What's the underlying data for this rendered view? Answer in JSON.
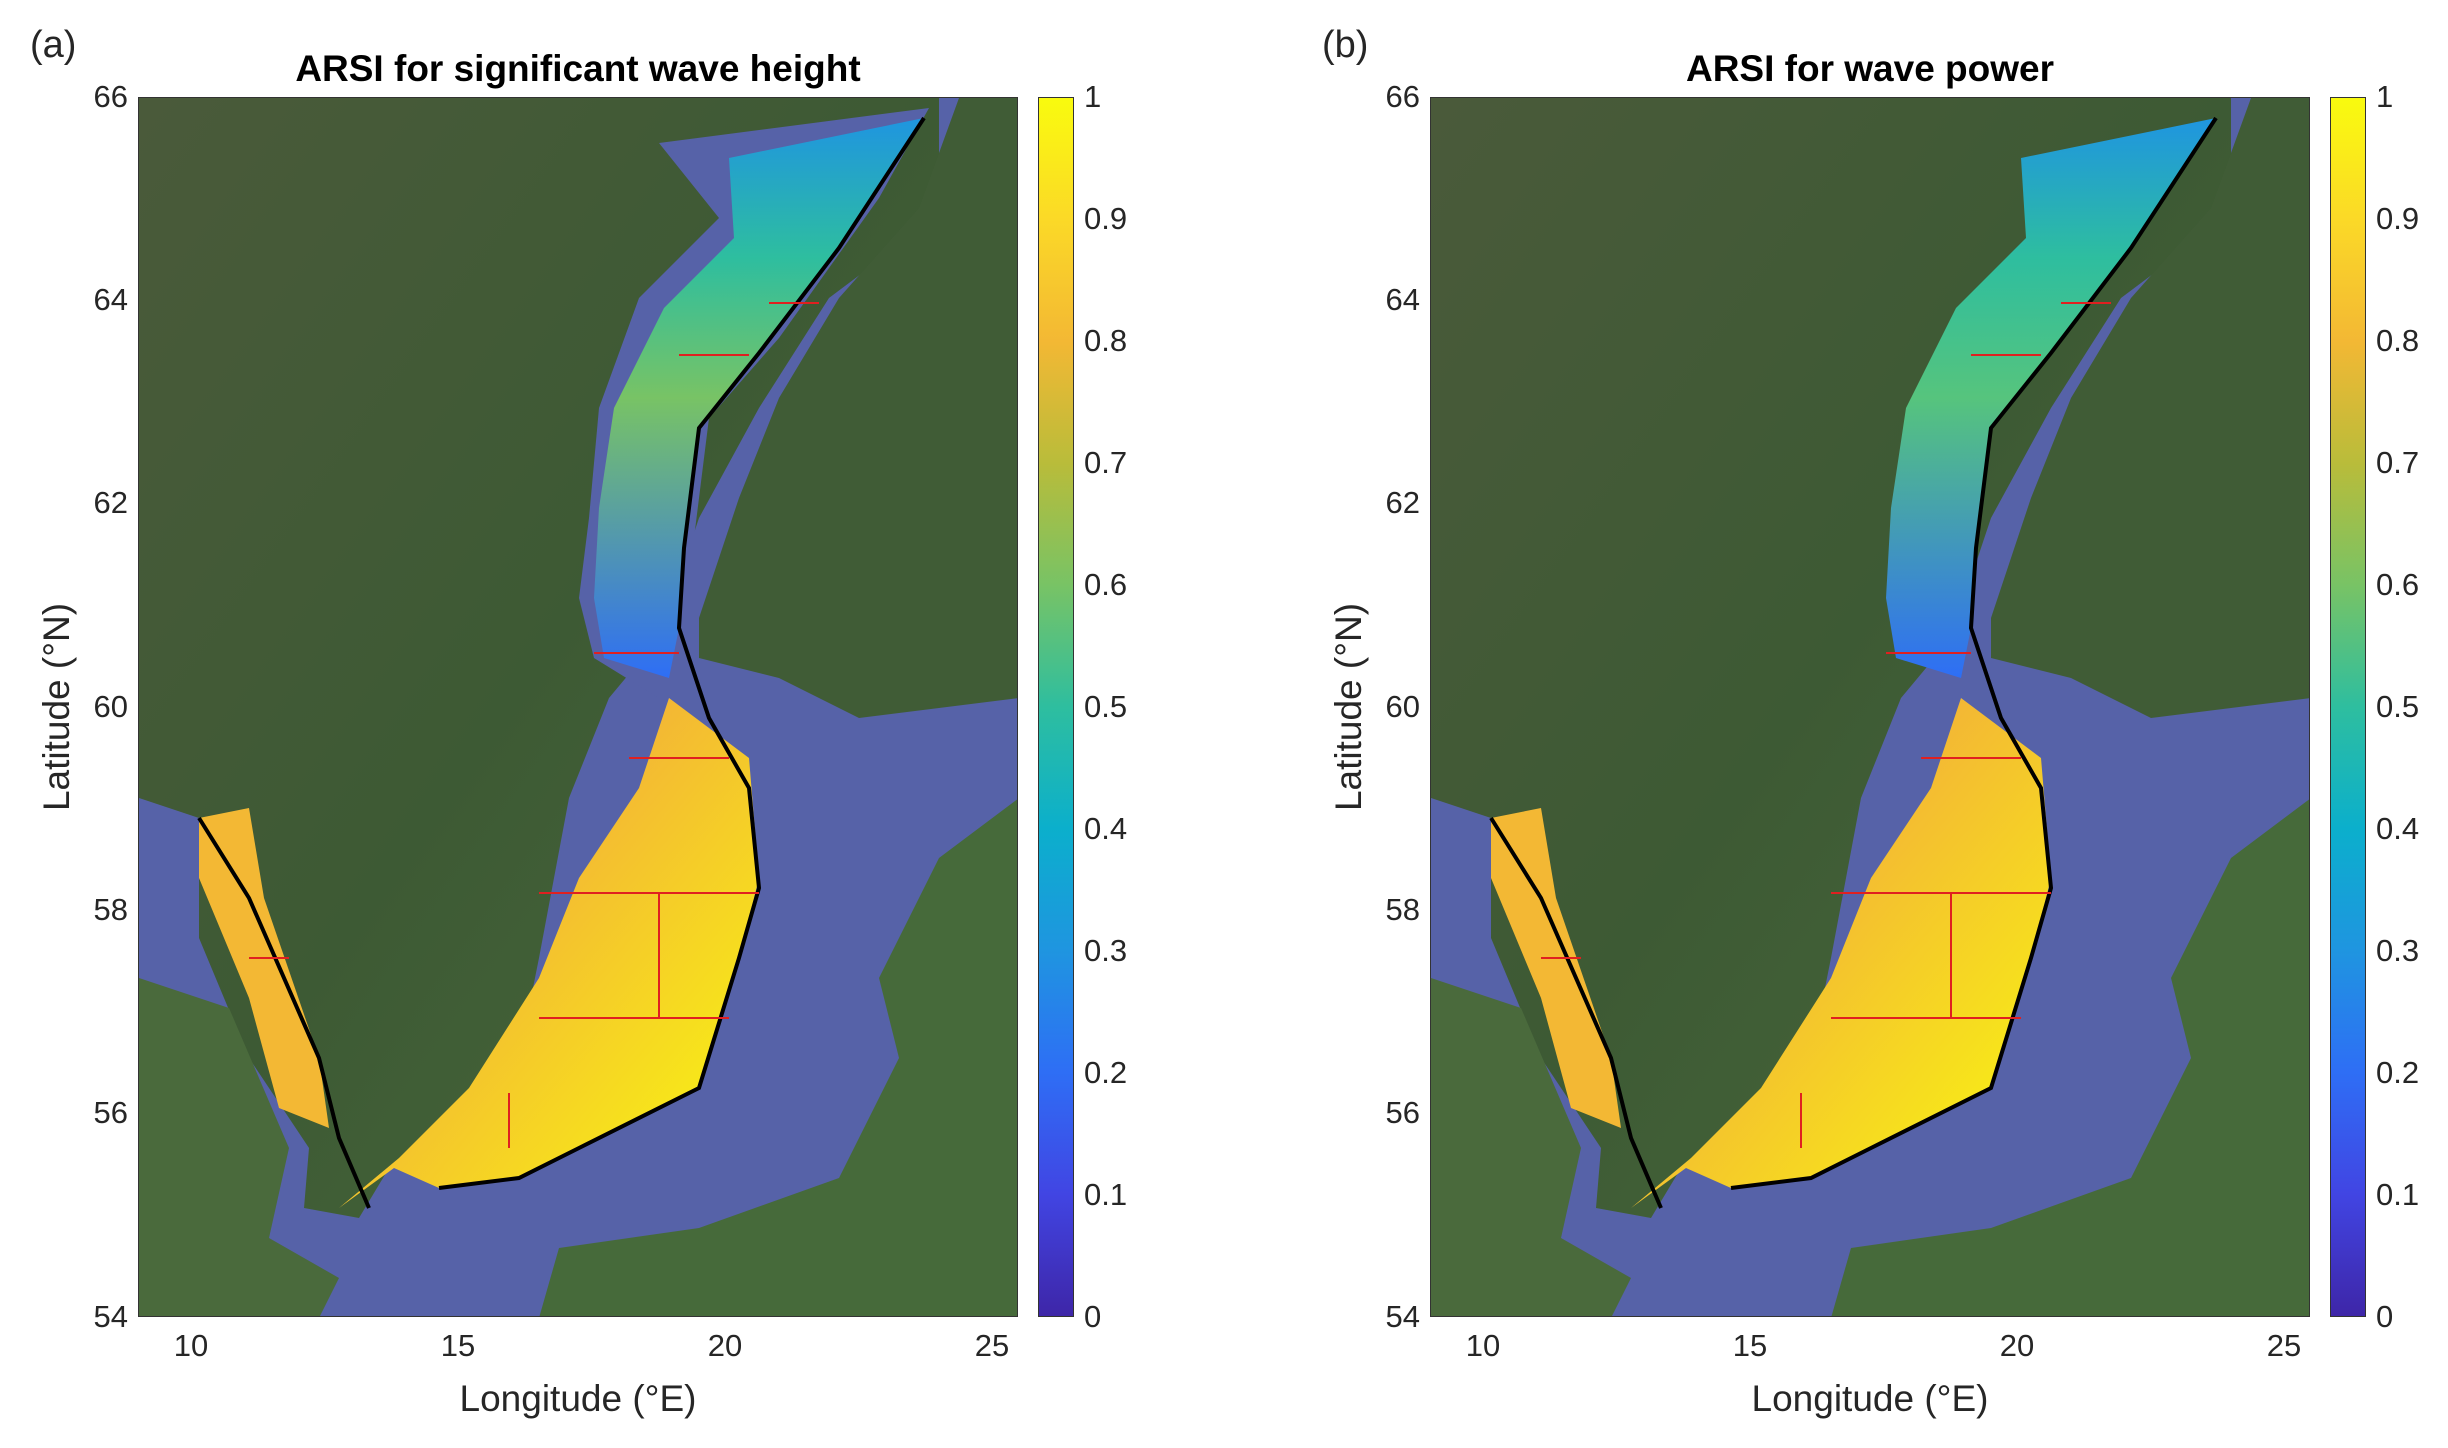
{
  "panels": [
    {
      "label": "(a)",
      "title": "ARSI for significant wave height",
      "xlabel": "Longitude (°E)",
      "ylabel": "Latitude (°N)",
      "colorbar_ticks": [
        "0",
        "0.1",
        "0.2",
        "0.3",
        "0.4",
        "0.5",
        "0.6",
        "0.7",
        "0.8",
        "0.9",
        "1"
      ]
    },
    {
      "label": "(b)",
      "title": "ARSI for wave power",
      "xlabel": "Longitude (°E)",
      "ylabel": "Latitude (°N)",
      "colorbar_ticks": [
        "0",
        "0.1",
        "0.2",
        "0.3",
        "0.4",
        "0.5",
        "0.6",
        "0.7",
        "0.8",
        "0.9",
        "1"
      ]
    }
  ],
  "map": {
    "x_ticks": [
      "10",
      "15",
      "20",
      "25"
    ],
    "y_ticks": [
      "66",
      "64",
      "62",
      "60",
      "58",
      "56",
      "54"
    ],
    "lon_range": [
      9,
      25.5
    ],
    "lat_range": [
      54,
      66
    ],
    "colormap": "parula",
    "colors": {
      "sea": "#5662a8",
      "land": "#3e5a35",
      "boundary": "#000000",
      "subdivision": "#e02020"
    }
  }
}
